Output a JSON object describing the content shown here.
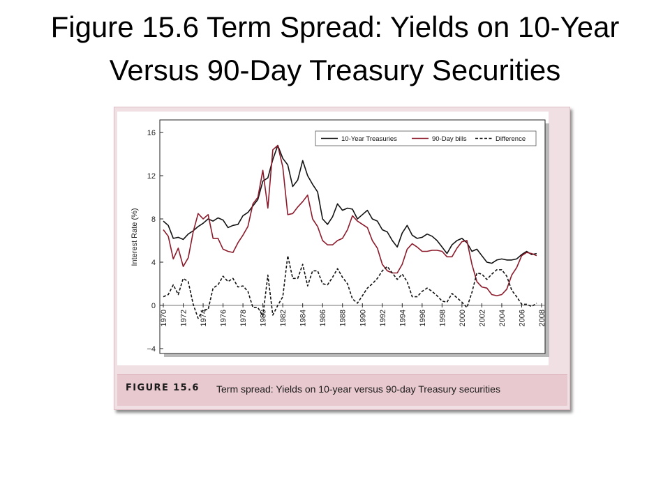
{
  "slide": {
    "title_line1": "Figure 15.6 Term Spread:  Yields on 10-Year",
    "title_line2": "Versus 90-Day Treasury Securities"
  },
  "figure": {
    "caption_label": "FIGURE 15.6",
    "caption_text": "Term spread: Yields on 10-year versus 90-day Treasury securities"
  },
  "colors": {
    "ten_year": "#111111",
    "bills": "#8b1a2b",
    "difference": "#111111",
    "frame": "#f1e0e3",
    "caption_bar": "#e8c9cf"
  },
  "chart_data": {
    "type": "line",
    "ylabel": "Interest Rate (%)",
    "xlabel": "",
    "xlim": [
      1970,
      2008
    ],
    "ylim": [
      -4,
      16
    ],
    "x_ticks": [
      "1970",
      "1972",
      "1974",
      "1976",
      "1978",
      "1980",
      "1982",
      "1984",
      "1986",
      "1988",
      "1990",
      "1992",
      "1994",
      "1996",
      "1998",
      "2000",
      "2002",
      "2004",
      "2006",
      "2008"
    ],
    "y_ticks": [
      "−4",
      "0",
      "4",
      "8",
      "12",
      "16"
    ],
    "legend_position": "top-right",
    "x": [
      1970,
      1970.5,
      1971,
      1971.5,
      1972,
      1972.5,
      1973,
      1973.5,
      1974,
      1974.5,
      1975,
      1975.5,
      1976,
      1976.5,
      1977,
      1977.5,
      1978,
      1978.5,
      1979,
      1979.5,
      1980,
      1980.5,
      1981,
      1981.5,
      1982,
      1982.5,
      1983,
      1983.5,
      1984,
      1984.5,
      1985,
      1985.5,
      1986,
      1986.5,
      1987,
      1987.5,
      1988,
      1988.5,
      1989,
      1989.5,
      1990,
      1990.5,
      1991,
      1991.5,
      1992,
      1992.5,
      1993,
      1993.5,
      1994,
      1994.5,
      1995,
      1995.5,
      1996,
      1996.5,
      1997,
      1997.5,
      1998,
      1998.5,
      1999,
      1999.5,
      2000,
      2000.5,
      2001,
      2001.5,
      2002,
      2002.5,
      2003,
      2003.5,
      2004,
      2004.5,
      2005,
      2005.5,
      2006,
      2006.5,
      2007,
      2007.5
    ],
    "series": [
      {
        "name": "10-Year Treasuries",
        "style": "solid",
        "color": "#111111",
        "values": [
          7.8,
          7.4,
          6.2,
          6.3,
          6.1,
          6.6,
          6.9,
          7.3,
          7.6,
          8.0,
          7.8,
          8.1,
          7.9,
          7.2,
          7.4,
          7.5,
          8.3,
          8.6,
          9.2,
          9.8,
          11.5,
          11.8,
          13.5,
          14.8,
          13.6,
          13.0,
          11.0,
          11.6,
          13.4,
          12.0,
          11.2,
          10.5,
          8.0,
          7.5,
          8.2,
          9.4,
          8.8,
          9.0,
          8.9,
          8.0,
          8.4,
          8.8,
          8.0,
          7.8,
          7.0,
          6.8,
          6.0,
          5.4,
          6.7,
          7.4,
          6.5,
          6.2,
          6.3,
          6.6,
          6.4,
          6.0,
          5.4,
          4.8,
          5.6,
          6.0,
          6.2,
          5.8,
          5.0,
          5.2,
          4.6,
          4.0,
          3.9,
          4.2,
          4.3,
          4.2,
          4.2,
          4.3,
          4.7,
          5.0,
          4.7,
          4.8
        ]
      },
      {
        "name": "90-Day bills",
        "style": "solid",
        "color": "#8b1a2b",
        "values": [
          7.0,
          6.4,
          4.3,
          5.3,
          3.6,
          4.4,
          6.8,
          8.5,
          8.0,
          8.4,
          6.2,
          6.2,
          5.2,
          5.0,
          4.9,
          5.8,
          6.5,
          7.3,
          9.4,
          10.0,
          12.5,
          9.0,
          14.4,
          14.8,
          12.8,
          8.4,
          8.5,
          9.1,
          9.6,
          10.2,
          8.0,
          7.3,
          6.0,
          5.6,
          5.6,
          6.0,
          6.2,
          7.0,
          8.3,
          7.8,
          7.5,
          7.2,
          6.0,
          5.3,
          3.8,
          3.2,
          3.0,
          3.0,
          3.8,
          5.2,
          5.7,
          5.4,
          5.0,
          5.0,
          5.1,
          5.1,
          5.0,
          4.5,
          4.5,
          5.3,
          5.9,
          6.0,
          3.8,
          2.2,
          1.7,
          1.6,
          1.0,
          0.9,
          1.0,
          1.5,
          2.8,
          3.5,
          4.6,
          4.9,
          4.8,
          4.6
        ]
      },
      {
        "name": "Difference",
        "style": "dashed",
        "color": "#111111",
        "values": [
          0.8,
          1.0,
          1.9,
          1.0,
          2.5,
          2.2,
          0.1,
          -1.2,
          -0.4,
          -0.4,
          1.6,
          1.9,
          2.7,
          2.2,
          2.5,
          1.7,
          1.8,
          1.3,
          -0.2,
          -0.2,
          -1.0,
          2.8,
          -0.9,
          0.0,
          0.8,
          4.6,
          2.5,
          2.5,
          3.8,
          1.8,
          3.2,
          3.2,
          2.0,
          1.9,
          2.6,
          3.4,
          2.6,
          2.0,
          0.6,
          0.2,
          0.9,
          1.6,
          2.0,
          2.5,
          3.2,
          3.6,
          3.0,
          2.4,
          2.9,
          2.2,
          0.8,
          0.8,
          1.3,
          1.6,
          1.3,
          0.9,
          0.4,
          0.3,
          1.1,
          0.7,
          0.3,
          -0.2,
          1.2,
          3.0,
          2.9,
          2.4,
          2.9,
          3.3,
          3.3,
          2.7,
          1.4,
          0.8,
          0.1,
          0.1,
          -0.1,
          0.2
        ]
      }
    ]
  }
}
